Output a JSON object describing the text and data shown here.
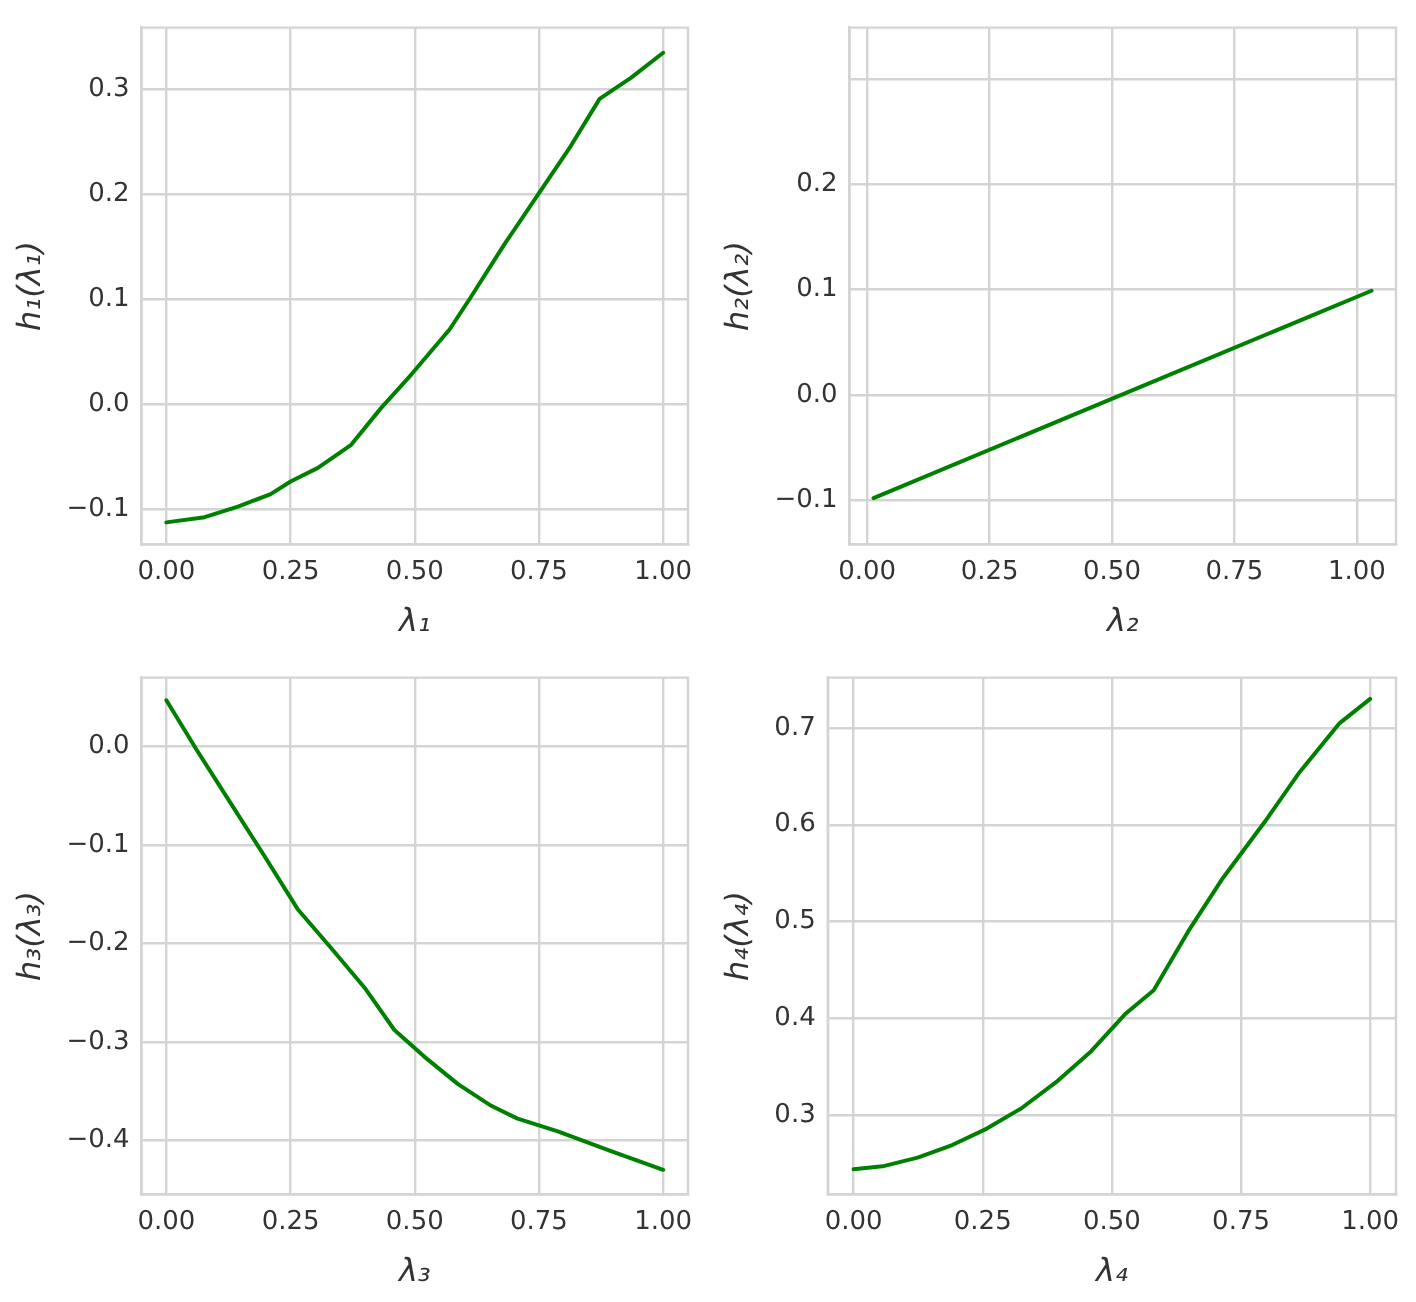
{
  "chart_data": [
    {
      "type": "line",
      "xlabel": "λ₁",
      "ylabel": "h₁(λ₁)",
      "xlim": [
        -0.05,
        1.05
      ],
      "ylim": [
        -0.134,
        0.359
      ],
      "xticks": [
        {
          "value": 0,
          "label": "0.00"
        },
        {
          "value": 0.25,
          "label": "0.25"
        },
        {
          "value": 0.5,
          "label": "0.50"
        },
        {
          "value": 0.75,
          "label": "0.75"
        },
        {
          "value": 1,
          "label": "1.00"
        }
      ],
      "yticks": [
        {
          "value": -0.1,
          "label": "−0.1"
        },
        {
          "value": 0,
          "label": "0.0"
        },
        {
          "value": 0.1,
          "label": "0.1"
        },
        {
          "value": 0.2,
          "label": "0.2"
        },
        {
          "value": 0.3,
          "label": "0.3"
        }
      ],
      "grid": true,
      "marker": "none",
      "line_style": "solid",
      "series": [
        {
          "color": "#008000",
          "x": [
            0,
            0.077,
            0.144,
            0.21,
            0.25,
            0.305,
            0.372,
            0.432,
            0.493,
            0.57,
            0.613,
            0.68,
            0.747,
            0.814,
            0.872,
            0.935,
            1.0
          ],
          "values": [
            -0.113,
            -0.108,
            -0.098,
            -0.086,
            -0.074,
            -0.061,
            -0.039,
            -0.004,
            0.028,
            0.071,
            0.102,
            0.152,
            0.199,
            0.246,
            0.291,
            0.311,
            0.335
          ]
        }
      ]
    },
    {
      "type": "line",
      "xlabel": "λ₂",
      "ylabel": "h₂(λ₂)",
      "xlim": [
        -0.036,
        1.08
      ],
      "ylim": [
        -0.142,
        0.349
      ],
      "xticks": [
        {
          "value": 0,
          "label": "0.00"
        },
        {
          "value": 0.25,
          "label": "0.25"
        },
        {
          "value": 0.5,
          "label": "0.50"
        },
        {
          "value": 0.75,
          "label": "0.75"
        },
        {
          "value": 1,
          "label": "1.00"
        }
      ],
      "yticks": [
        {
          "value": -0.1,
          "label": "−0.1"
        },
        {
          "value": 0,
          "label": "0.0"
        },
        {
          "value": 0.1,
          "label": "0.1"
        },
        {
          "value": 0.2,
          "label": "0.2"
        },
        {
          "value": 0.3,
          "label": null
        }
      ],
      "grid": true,
      "marker": "none",
      "line_style": "solid",
      "series": [
        {
          "color": "#008000",
          "x": [
            0.013,
            1.03
          ],
          "values": [
            -0.098,
            0.099
          ]
        }
      ]
    },
    {
      "type": "line",
      "xlabel": "λ₃",
      "ylabel": "h₃(λ₃)",
      "xlim": [
        -0.05,
        1.05
      ],
      "ylim": [
        -0.455,
        0.07
      ],
      "xticks": [
        {
          "value": 0,
          "label": "0.00"
        },
        {
          "value": 0.25,
          "label": "0.25"
        },
        {
          "value": 0.5,
          "label": "0.50"
        },
        {
          "value": 0.75,
          "label": "0.75"
        },
        {
          "value": 1,
          "label": "1.00"
        }
      ],
      "yticks": [
        {
          "value": -0.4,
          "label": "−0.4"
        },
        {
          "value": -0.3,
          "label": "−0.3"
        },
        {
          "value": -0.2,
          "label": "−0.2"
        },
        {
          "value": -0.1,
          "label": "−0.1"
        },
        {
          "value": 0,
          "label": "0.0"
        }
      ],
      "grid": true,
      "marker": "none",
      "line_style": "solid",
      "series": [
        {
          "color": "#008000",
          "x": [
            0,
            0.063,
            0.13,
            0.197,
            0.264,
            0.332,
            0.399,
            0.459,
            0.519,
            0.587,
            0.654,
            0.707,
            0.788,
            0.895,
            1.0
          ],
          "values": [
            0.047,
            -0.005,
            -0.058,
            -0.111,
            -0.165,
            -0.205,
            -0.245,
            -0.288,
            -0.315,
            -0.343,
            -0.365,
            -0.378,
            -0.391,
            -0.411,
            -0.43
          ]
        }
      ]
    },
    {
      "type": "line",
      "xlabel": "λ₄",
      "ylabel": "h₄(λ₄)",
      "xlim": [
        -0.05,
        1.05
      ],
      "ylim": [
        0.218,
        0.752
      ],
      "xticks": [
        {
          "value": 0,
          "label": "0.00"
        },
        {
          "value": 0.25,
          "label": "0.25"
        },
        {
          "value": 0.5,
          "label": "0.50"
        },
        {
          "value": 0.75,
          "label": "0.75"
        },
        {
          "value": 1,
          "label": "1.00"
        }
      ],
      "yticks": [
        0.3,
        0.4,
        0.5,
        0.6,
        0.7
      ],
      "grid": true,
      "marker": "none",
      "line_style": "solid",
      "series": [
        {
          "color": "#008000",
          "x": [
            0,
            0.056,
            0.124,
            0.191,
            0.258,
            0.325,
            0.392,
            0.46,
            0.527,
            0.581,
            0.648,
            0.715,
            0.796,
            0.863,
            0.941,
            1.0
          ],
          "values": [
            0.244,
            0.247,
            0.256,
            0.269,
            0.286,
            0.307,
            0.334,
            0.366,
            0.405,
            0.429,
            0.49,
            0.545,
            0.603,
            0.654,
            0.705,
            0.73
          ]
        }
      ]
    }
  ]
}
